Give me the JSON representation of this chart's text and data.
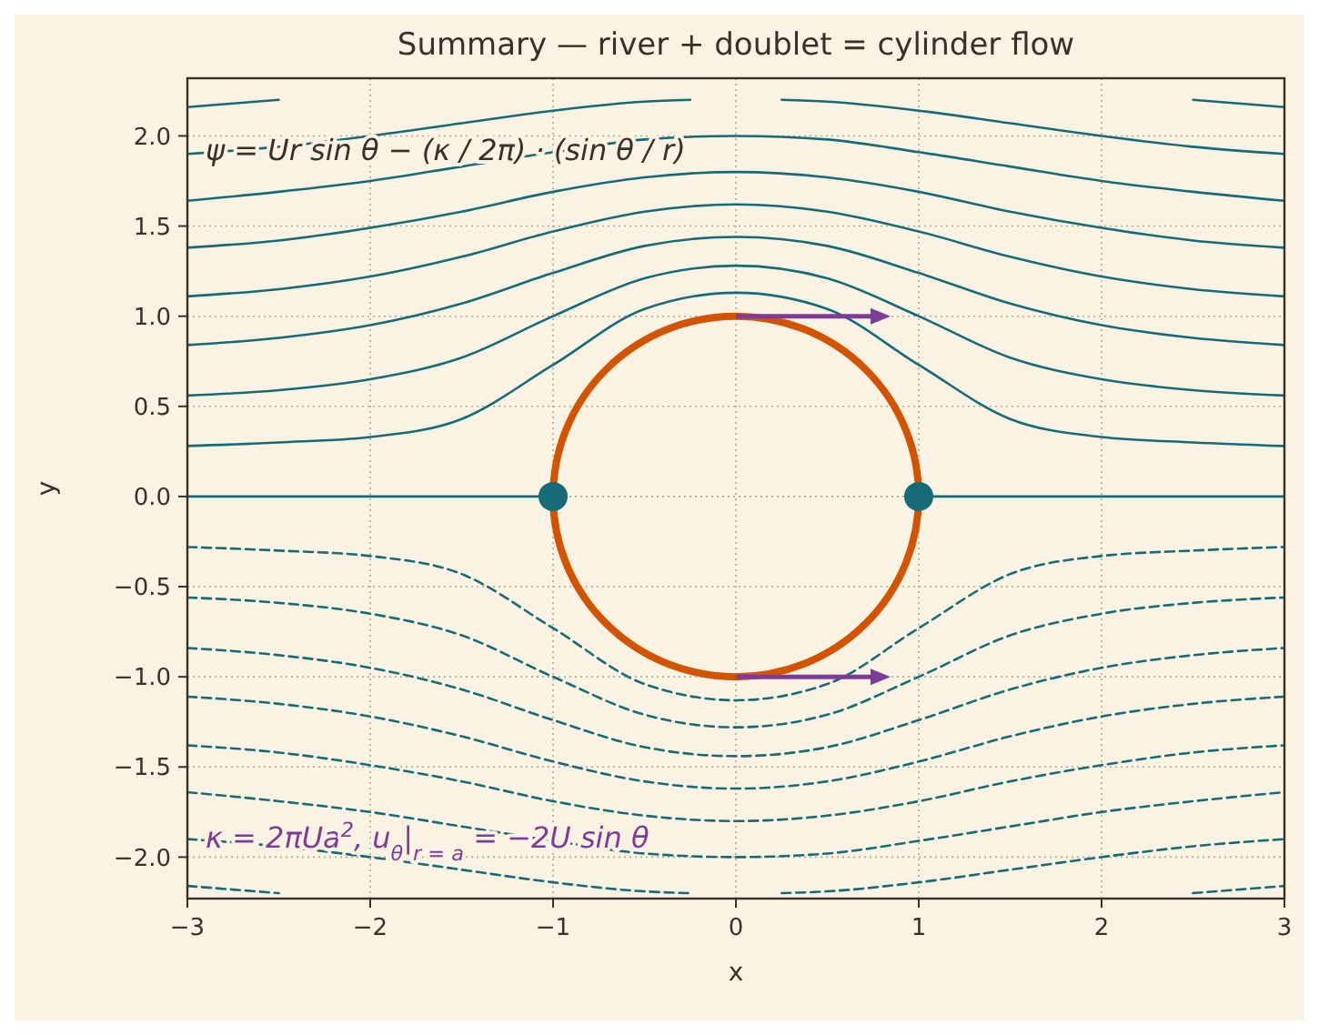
{
  "chart_data": {
    "type": "line",
    "title": "Summary — river + doublet = cylinder flow",
    "xlabel": "x",
    "ylabel": "y",
    "xlim": [
      -3,
      3
    ],
    "ylim": [
      -2.23,
      2.32
    ],
    "xticks": [
      {
        "value": -3,
        "label": "−3"
      },
      {
        "value": -2,
        "label": "−2"
      },
      {
        "value": -1,
        "label": "−1"
      },
      0,
      1,
      2,
      3
    ],
    "yticks": [
      {
        "value": -2,
        "label": "−2.0"
      },
      {
        "value": -1.5,
        "label": "−1.5"
      },
      {
        "value": -1,
        "label": "−1.0"
      },
      {
        "value": -0.5,
        "label": "−0.5"
      },
      {
        "value": 0,
        "label": "0.0"
      },
      0.5,
      {
        "value": 1,
        "label": "1.0"
      },
      1.5,
      {
        "value": 2,
        "label": "2.0"
      }
    ],
    "grid": true,
    "annotations": [
      "ψ = Ur sin θ − (κ / 2π) · (sin θ / r)",
      "κ = 2πUa$^{2}$,   u$_{θ}$|$_{r = a}$ = −2U sin θ"
    ],
    "series": [
      {
        "color": "#176b78",
        "line_style": "solid",
        "x": [
          -3,
          -2.5,
          -2,
          -1.5,
          -1,
          -0.5,
          0,
          0.5,
          1,
          1.5,
          2,
          2.5,
          3
        ],
        "values": [
          0.28,
          0.3,
          0.33,
          0.43,
          0.73,
          1.04,
          1.13,
          1.04,
          0.73,
          0.43,
          0.33,
          0.3,
          0.28
        ]
      },
      {
        "color": "#176b78",
        "line_style": "solid",
        "x": [
          -3,
          -2.5,
          -2,
          -1.5,
          -1,
          -0.5,
          0,
          0.5,
          1,
          1.5,
          2,
          2.5,
          3
        ],
        "values": [
          0.56,
          0.59,
          0.65,
          0.77,
          1.0,
          1.21,
          1.28,
          1.21,
          1.0,
          0.77,
          0.65,
          0.59,
          0.56
        ]
      },
      {
        "color": "#176b78",
        "line_style": "solid",
        "x": [
          -3,
          -2.5,
          -2,
          -1.5,
          -1,
          -0.5,
          0,
          0.5,
          1,
          1.5,
          2,
          2.5,
          3
        ],
        "values": [
          0.84,
          0.88,
          0.95,
          1.07,
          1.24,
          1.39,
          1.44,
          1.39,
          1.24,
          1.07,
          0.95,
          0.88,
          0.84
        ]
      },
      {
        "color": "#176b78",
        "line_style": "solid",
        "x": [
          -3,
          -2.5,
          -2,
          -1.5,
          -1,
          -0.5,
          0,
          0.5,
          1,
          1.5,
          2,
          2.5,
          3
        ],
        "values": [
          1.11,
          1.15,
          1.22,
          1.33,
          1.47,
          1.58,
          1.62,
          1.58,
          1.47,
          1.33,
          1.22,
          1.15,
          1.11
        ]
      },
      {
        "color": "#176b78",
        "line_style": "solid",
        "x": [
          -3,
          -2.5,
          -2,
          -1.5,
          -1,
          -0.5,
          0,
          0.5,
          1,
          1.5,
          2,
          2.5,
          3
        ],
        "values": [
          1.38,
          1.42,
          1.49,
          1.58,
          1.69,
          1.77,
          1.8,
          1.77,
          1.69,
          1.58,
          1.49,
          1.42,
          1.38
        ]
      },
      {
        "color": "#176b78",
        "line_style": "solid",
        "x": [
          -3,
          -2.5,
          -2,
          -1.5,
          -1,
          -0.5,
          0,
          0.5,
          1,
          1.5,
          2,
          2.5,
          3
        ],
        "values": [
          1.64,
          1.69,
          1.75,
          1.83,
          1.91,
          1.98,
          2.0,
          1.98,
          1.91,
          1.83,
          1.75,
          1.69,
          1.64
        ]
      },
      {
        "color": "#176b78",
        "line_style": "solid",
        "x": [
          -3,
          -2.5,
          -2,
          -1.5,
          -1,
          -0.5,
          -0.25,
          0,
          0.25,
          0.5,
          1,
          1.5,
          2,
          2.5,
          3
        ],
        "values": [
          1.9,
          1.94,
          2.0,
          2.07,
          2.14,
          2.19,
          2.2,
          null,
          2.2,
          2.19,
          2.14,
          2.07,
          2.0,
          1.94,
          1.9
        ]
      },
      {
        "color": "#176b78",
        "line_style": "solid",
        "x": [
          -3,
          -2.75,
          -2.5,
          0,
          2.5,
          2.75,
          3
        ],
        "values": [
          2.16,
          2.18,
          2.2,
          null,
          2.2,
          2.18,
          2.16
        ]
      },
      {
        "color": "#176b78",
        "line_style": "solid",
        "x": [
          -3,
          -1
        ],
        "values": [
          0,
          0
        ]
      },
      {
        "color": "#176b78",
        "line_style": "solid",
        "x": [
          1,
          3
        ],
        "values": [
          0,
          0
        ]
      },
      {
        "color": "#176b78",
        "line_style": "dashed",
        "x": [
          -3,
          -2.5,
          -2,
          -1.5,
          -1,
          -0.5,
          0,
          0.5,
          1,
          1.5,
          2,
          2.5,
          3
        ],
        "values": [
          -0.28,
          -0.3,
          -0.33,
          -0.43,
          -0.73,
          -1.04,
          -1.13,
          -1.04,
          -0.73,
          -0.43,
          -0.33,
          -0.3,
          -0.28
        ]
      },
      {
        "color": "#176b78",
        "line_style": "dashed",
        "x": [
          -3,
          -2.5,
          -2,
          -1.5,
          -1,
          -0.5,
          0,
          0.5,
          1,
          1.5,
          2,
          2.5,
          3
        ],
        "values": [
          -0.56,
          -0.59,
          -0.65,
          -0.77,
          -1.0,
          -1.21,
          -1.28,
          -1.21,
          -1.0,
          -0.77,
          -0.65,
          -0.59,
          -0.56
        ]
      },
      {
        "color": "#176b78",
        "line_style": "dashed",
        "x": [
          -3,
          -2.5,
          -2,
          -1.5,
          -1,
          -0.5,
          0,
          0.5,
          1,
          1.5,
          2,
          2.5,
          3
        ],
        "values": [
          -0.84,
          -0.88,
          -0.95,
          -1.07,
          -1.24,
          -1.39,
          -1.44,
          -1.39,
          -1.24,
          -1.07,
          -0.95,
          -0.88,
          -0.84
        ]
      },
      {
        "color": "#176b78",
        "line_style": "dashed",
        "x": [
          -3,
          -2.5,
          -2,
          -1.5,
          -1,
          -0.5,
          0,
          0.5,
          1,
          1.5,
          2,
          2.5,
          3
        ],
        "values": [
          -1.11,
          -1.15,
          -1.22,
          -1.33,
          -1.47,
          -1.58,
          -1.62,
          -1.58,
          -1.47,
          -1.33,
          -1.22,
          -1.15,
          -1.11
        ]
      },
      {
        "color": "#176b78",
        "line_style": "dashed",
        "x": [
          -3,
          -2.5,
          -2,
          -1.5,
          -1,
          -0.5,
          0,
          0.5,
          1,
          1.5,
          2,
          2.5,
          3
        ],
        "values": [
          -1.38,
          -1.42,
          -1.49,
          -1.58,
          -1.69,
          -1.77,
          -1.8,
          -1.77,
          -1.69,
          -1.58,
          -1.49,
          -1.42,
          -1.38
        ]
      },
      {
        "color": "#176b78",
        "line_style": "dashed",
        "x": [
          -3,
          -2.5,
          -2,
          -1.5,
          -1,
          -0.5,
          0,
          0.5,
          1,
          1.5,
          2,
          2.5,
          3
        ],
        "values": [
          -1.64,
          -1.69,
          -1.75,
          -1.83,
          -1.91,
          -1.98,
          -2.0,
          -1.98,
          -1.91,
          -1.83,
          -1.75,
          -1.69,
          -1.64
        ]
      },
      {
        "color": "#176b78",
        "line_style": "dashed",
        "x": [
          -3,
          -2.5,
          -2,
          -1.5,
          -1,
          -0.5,
          -0.25,
          0,
          0.25,
          0.5,
          1,
          1.5,
          2,
          2.5,
          3
        ],
        "values": [
          -1.9,
          -1.94,
          -2.0,
          -2.07,
          -2.14,
          -2.19,
          -2.2,
          null,
          -2.2,
          -2.19,
          -2.14,
          -2.07,
          -2.0,
          -1.94,
          -1.9
        ]
      },
      {
        "color": "#176b78",
        "line_style": "dashed",
        "x": [
          -3,
          -2.75,
          -2.5,
          0,
          2.5,
          2.75,
          3
        ],
        "values": [
          -2.16,
          -2.18,
          -2.2,
          null,
          -2.2,
          -2.18,
          -2.16
        ]
      },
      {
        "type": "scatter",
        "color": "#176b78",
        "marker": "circle",
        "x": [
          -1,
          1
        ],
        "values": [
          0,
          0
        ]
      }
    ]
  }
}
